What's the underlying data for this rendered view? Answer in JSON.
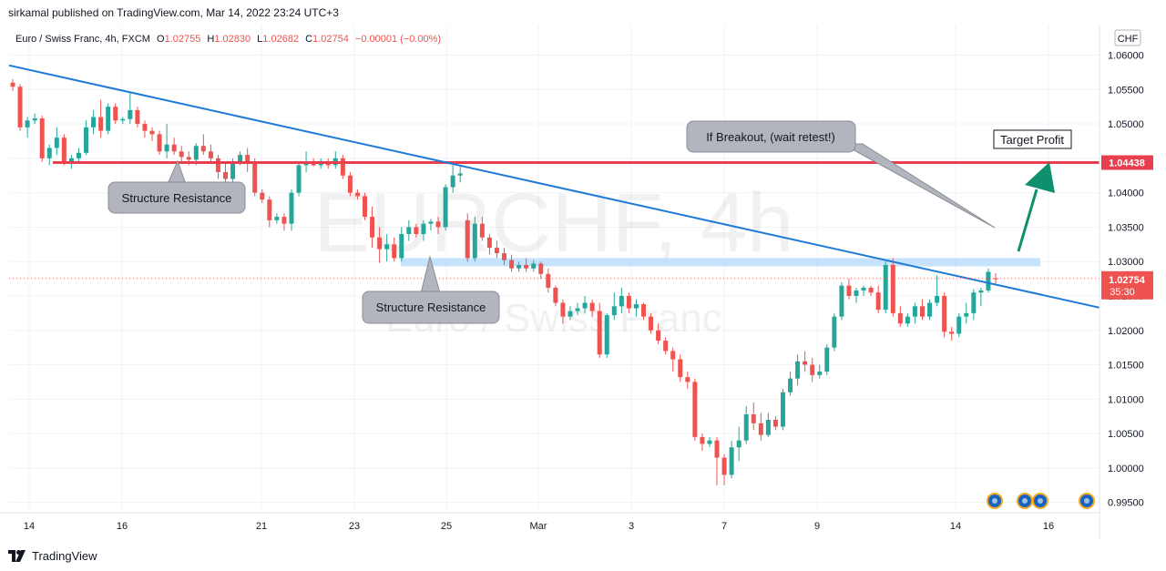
{
  "header": {
    "published": "sirkamal published on TradingView.com, Mar 14, 2022 23:24 UTC+3"
  },
  "legend": {
    "symbol": "Euro / Swiss Franc, 4h, FXCM",
    "o_label": "O",
    "o_value": "1.02755",
    "h_label": "H",
    "h_value": "1.02830",
    "l_label": "L",
    "l_value": "1.02682",
    "c_label": "C",
    "c_value": "1.02754",
    "change": "−0.00001 (−0.00%)"
  },
  "watermark": {
    "ticker": "EURCHF, 4h",
    "name": "Euro / Swiss Franc"
  },
  "currency_label": "CHF",
  "price_tags": {
    "resistance": "1.04438",
    "last_price": "1.02754",
    "countdown": "35:30"
  },
  "annotations": {
    "structure_resistance_1": "Structure Resistance",
    "structure_resistance_2": "Structure Resistance",
    "breakout_note": "If Breakout, (wait retest!)",
    "target_profit": "Target Profit"
  },
  "footer": {
    "brand": "TradingView"
  },
  "colors": {
    "up": "#26a69a",
    "down": "#ef5350",
    "trendline": "#1e7bd6",
    "resistance_line": "#e83f4f",
    "support_zone": "#bbdefb",
    "target_arrow": "#0e8f6e",
    "callout_fill": "#b2b5be"
  },
  "chart_data": {
    "type": "candlestick",
    "symbol": "EURCHF",
    "timeframe": "4h",
    "y_ticks": [
      "1.06000",
      "1.05500",
      "1.05000",
      "1.04500",
      "1.04000",
      "1.03500",
      "1.03000",
      "1.02500",
      "1.02000",
      "1.01500",
      "1.01000",
      "1.00500",
      "1.00000",
      "0.99500"
    ],
    "ylim": [
      0.9935,
      1.0643
    ],
    "x_ticks": [
      "14",
      "16",
      "21",
      "23",
      "25",
      "Mar",
      "3",
      "7",
      "9",
      "14",
      "16"
    ],
    "levels": {
      "resistance": 1.04438,
      "last_price": 1.02754
    },
    "support_zone": [
      1.0293,
      1.0305
    ],
    "trendline": {
      "start": 1.0585,
      "end": 1.0233
    },
    "candles": [
      {
        "o": 1.056,
        "h": 1.0565,
        "l": 1.0548,
        "c": 1.0554
      },
      {
        "o": 1.0554,
        "h": 1.0558,
        "l": 1.049,
        "c": 1.0495
      },
      {
        "o": 1.0495,
        "h": 1.051,
        "l": 1.048,
        "c": 1.0505
      },
      {
        "o": 1.0505,
        "h": 1.0515,
        "l": 1.05,
        "c": 1.0508
      },
      {
        "o": 1.0508,
        "h": 1.0512,
        "l": 1.0445,
        "c": 1.045
      },
      {
        "o": 1.045,
        "h": 1.047,
        "l": 1.044,
        "c": 1.0465
      },
      {
        "o": 1.0465,
        "h": 1.0495,
        "l": 1.0455,
        "c": 1.048
      },
      {
        "o": 1.048,
        "h": 1.0485,
        "l": 1.044,
        "c": 1.0445
      },
      {
        "o": 1.0445,
        "h": 1.0455,
        "l": 1.0435,
        "c": 1.045
      },
      {
        "o": 1.045,
        "h": 1.0465,
        "l": 1.0445,
        "c": 1.0458
      },
      {
        "o": 1.0458,
        "h": 1.0505,
        "l": 1.0455,
        "c": 1.0495
      },
      {
        "o": 1.0495,
        "h": 1.052,
        "l": 1.0485,
        "c": 1.051
      },
      {
        "o": 1.051,
        "h": 1.0535,
        "l": 1.048,
        "c": 1.049
      },
      {
        "o": 1.049,
        "h": 1.053,
        "l": 1.0485,
        "c": 1.0525
      },
      {
        "o": 1.0525,
        "h": 1.053,
        "l": 1.05,
        "c": 1.0505
      },
      {
        "o": 1.0505,
        "h": 1.051,
        "l": 1.05,
        "c": 1.0507
      },
      {
        "o": 1.0507,
        "h": 1.0545,
        "l": 1.05,
        "c": 1.052
      },
      {
        "o": 1.052,
        "h": 1.0525,
        "l": 1.0495,
        "c": 1.05
      },
      {
        "o": 1.05,
        "h": 1.0505,
        "l": 1.048,
        "c": 1.049
      },
      {
        "o": 1.049,
        "h": 1.0495,
        "l": 1.0475,
        "c": 1.0485
      },
      {
        "o": 1.0485,
        "h": 1.049,
        "l": 1.0455,
        "c": 1.046
      },
      {
        "o": 1.046,
        "h": 1.05,
        "l": 1.045,
        "c": 1.047
      },
      {
        "o": 1.047,
        "h": 1.048,
        "l": 1.0455,
        "c": 1.046
      },
      {
        "o": 1.046,
        "h": 1.0468,
        "l": 1.0445,
        "c": 1.0452
      },
      {
        "o": 1.0452,
        "h": 1.046,
        "l": 1.044,
        "c": 1.0448
      },
      {
        "o": 1.0448,
        "h": 1.0472,
        "l": 1.044,
        "c": 1.0468
      },
      {
        "o": 1.0468,
        "h": 1.0485,
        "l": 1.0455,
        "c": 1.046
      },
      {
        "o": 1.046,
        "h": 1.047,
        "l": 1.0445,
        "c": 1.045
      },
      {
        "o": 1.045,
        "h": 1.0455,
        "l": 1.042,
        "c": 1.043
      },
      {
        "o": 1.043,
        "h": 1.0445,
        "l": 1.0415,
        "c": 1.042
      },
      {
        "o": 1.042,
        "h": 1.045,
        "l": 1.0415,
        "c": 1.0445
      },
      {
        "o": 1.0445,
        "h": 1.046,
        "l": 1.044,
        "c": 1.0455
      },
      {
        "o": 1.0455,
        "h": 1.0465,
        "l": 1.043,
        "c": 1.0445
      },
      {
        "o": 1.0445,
        "h": 1.045,
        "l": 1.0395,
        "c": 1.04
      },
      {
        "o": 1.04,
        "h": 1.0405,
        "l": 1.0385,
        "c": 1.039
      },
      {
        "o": 1.039,
        "h": 1.0395,
        "l": 1.035,
        "c": 1.036
      },
      {
        "o": 1.036,
        "h": 1.037,
        "l": 1.0355,
        "c": 1.0365
      },
      {
        "o": 1.0365,
        "h": 1.037,
        "l": 1.0345,
        "c": 1.0355
      },
      {
        "o": 1.0355,
        "h": 1.0405,
        "l": 1.0345,
        "c": 1.04
      },
      {
        "o": 1.04,
        "h": 1.0445,
        "l": 1.0395,
        "c": 1.044
      },
      {
        "o": 1.044,
        "h": 1.046,
        "l": 1.043,
        "c": 1.0445
      },
      {
        "o": 1.0445,
        "h": 1.045,
        "l": 1.0438,
        "c": 1.044
      },
      {
        "o": 1.044,
        "h": 1.045,
        "l": 1.0435,
        "c": 1.0445
      },
      {
        "o": 1.0445,
        "h": 1.045,
        "l": 1.0435,
        "c": 1.044
      },
      {
        "o": 1.044,
        "h": 1.046,
        "l": 1.0435,
        "c": 1.045
      },
      {
        "o": 1.045,
        "h": 1.0455,
        "l": 1.042,
        "c": 1.0425
      },
      {
        "o": 1.0425,
        "h": 1.043,
        "l": 1.0395,
        "c": 1.04
      },
      {
        "o": 1.04,
        "h": 1.0405,
        "l": 1.039,
        "c": 1.0395
      },
      {
        "o": 1.0395,
        "h": 1.04,
        "l": 1.036,
        "c": 1.0365
      },
      {
        "o": 1.0365,
        "h": 1.038,
        "l": 1.032,
        "c": 1.0335
      },
      {
        "o": 1.0335,
        "h": 1.035,
        "l": 1.0298,
        "c": 1.0318
      },
      {
        "o": 1.0318,
        "h": 1.034,
        "l": 1.03,
        "c": 1.0325
      },
      {
        "o": 1.0325,
        "h": 1.0335,
        "l": 1.03,
        "c": 1.0305
      },
      {
        "o": 1.0305,
        "h": 1.035,
        "l": 1.03,
        "c": 1.034
      },
      {
        "o": 1.034,
        "h": 1.036,
        "l": 1.033,
        "c": 1.035
      },
      {
        "o": 1.035,
        "h": 1.0355,
        "l": 1.0335,
        "c": 1.034
      },
      {
        "o": 1.034,
        "h": 1.036,
        "l": 1.033,
        "c": 1.0355
      },
      {
        "o": 1.0355,
        "h": 1.0362,
        "l": 1.0345,
        "c": 1.0358
      },
      {
        "o": 1.0358,
        "h": 1.0365,
        "l": 1.034,
        "c": 1.035
      },
      {
        "o": 1.035,
        "h": 1.0412,
        "l": 1.0345,
        "c": 1.0408
      },
      {
        "o": 1.0408,
        "h": 1.044,
        "l": 1.04,
        "c": 1.0425
      },
      {
        "o": 1.0425,
        "h": 1.044,
        "l": 1.0415,
        "c": 1.0428
      },
      {
        "o": 1.036,
        "h": 1.037,
        "l": 1.03,
        "c": 1.0305
      },
      {
        "o": 1.0305,
        "h": 1.0365,
        "l": 1.03,
        "c": 1.0355
      },
      {
        "o": 1.0355,
        "h": 1.0365,
        "l": 1.033,
        "c": 1.0335
      },
      {
        "o": 1.0335,
        "h": 1.034,
        "l": 1.031,
        "c": 1.032
      },
      {
        "o": 1.032,
        "h": 1.033,
        "l": 1.0305,
        "c": 1.0312
      },
      {
        "o": 1.0312,
        "h": 1.032,
        "l": 1.0295,
        "c": 1.0302
      },
      {
        "o": 1.0302,
        "h": 1.031,
        "l": 1.0285,
        "c": 1.029
      },
      {
        "o": 1.029,
        "h": 1.03,
        "l": 1.0285,
        "c": 1.0295
      },
      {
        "o": 1.0295,
        "h": 1.0305,
        "l": 1.0285,
        "c": 1.029
      },
      {
        "o": 1.029,
        "h": 1.0302,
        "l": 1.0285,
        "c": 1.0297
      },
      {
        "o": 1.0297,
        "h": 1.03,
        "l": 1.0275,
        "c": 1.0282
      },
      {
        "o": 1.0282,
        "h": 1.029,
        "l": 1.0255,
        "c": 1.0262
      },
      {
        "o": 1.0262,
        "h": 1.0265,
        "l": 1.0235,
        "c": 1.024
      },
      {
        "o": 1.024,
        "h": 1.0245,
        "l": 1.021,
        "c": 1.022
      },
      {
        "o": 1.022,
        "h": 1.0235,
        "l": 1.0215,
        "c": 1.0228
      },
      {
        "o": 1.0228,
        "h": 1.024,
        "l": 1.0222,
        "c": 1.0232
      },
      {
        "o": 1.0232,
        "h": 1.025,
        "l": 1.0225,
        "c": 1.024
      },
      {
        "o": 1.024,
        "h": 1.0245,
        "l": 1.022,
        "c": 1.0228
      },
      {
        "o": 1.0228,
        "h": 1.024,
        "l": 1.016,
        "c": 1.0165
      },
      {
        "o": 1.0165,
        "h": 1.0225,
        "l": 1.016,
        "c": 1.0222
      },
      {
        "o": 1.0222,
        "h": 1.0255,
        "l": 1.0215,
        "c": 1.0235
      },
      {
        "o": 1.0235,
        "h": 1.0262,
        "l": 1.0225,
        "c": 1.025
      },
      {
        "o": 1.025,
        "h": 1.0255,
        "l": 1.0225,
        "c": 1.0232
      },
      {
        "o": 1.0232,
        "h": 1.0245,
        "l": 1.022,
        "c": 1.0238
      },
      {
        "o": 1.0238,
        "h": 1.024,
        "l": 1.0215,
        "c": 1.022
      },
      {
        "o": 1.022,
        "h": 1.0225,
        "l": 1.0195,
        "c": 1.02
      },
      {
        "o": 1.02,
        "h": 1.021,
        "l": 1.018,
        "c": 1.0185
      },
      {
        "o": 1.0185,
        "h": 1.019,
        "l": 1.0165,
        "c": 1.017
      },
      {
        "o": 1.017,
        "h": 1.0175,
        "l": 1.014,
        "c": 1.0158
      },
      {
        "o": 1.0158,
        "h": 1.0165,
        "l": 1.0125,
        "c": 1.0132
      },
      {
        "o": 1.0132,
        "h": 1.014,
        "l": 1.0115,
        "c": 1.0125
      },
      {
        "o": 1.0125,
        "h": 1.013,
        "l": 1.004,
        "c": 1.0045
      },
      {
        "o": 1.0045,
        "h": 1.005,
        "l": 1.0025,
        "c": 1.0035
      },
      {
        "o": 1.0035,
        "h": 1.0045,
        "l": 1.003,
        "c": 1.004
      },
      {
        "o": 1.004,
        "h": 1.0045,
        "l": 0.9975,
        "c": 1.0015
      },
      {
        "o": 1.0015,
        "h": 1.002,
        "l": 0.9975,
        "c": 0.999
      },
      {
        "o": 0.999,
        "h": 1.004,
        "l": 0.9985,
        "c": 1.003
      },
      {
        "o": 1.003,
        "h": 1.006,
        "l": 1.001,
        "c": 1.004
      },
      {
        "o": 1.004,
        "h": 1.009,
        "l": 1.0035,
        "c": 1.0078
      },
      {
        "o": 1.0078,
        "h": 1.0095,
        "l": 1.0055,
        "c": 1.0065
      },
      {
        "o": 1.0065,
        "h": 1.008,
        "l": 1.004,
        "c": 1.0048
      },
      {
        "o": 1.0048,
        "h": 1.008,
        "l": 1.0045,
        "c": 1.007
      },
      {
        "o": 1.007,
        "h": 1.0075,
        "l": 1.0055,
        "c": 1.006
      },
      {
        "o": 1.006,
        "h": 1.0115,
        "l": 1.0055,
        "c": 1.011
      },
      {
        "o": 1.011,
        "h": 1.014,
        "l": 1.0105,
        "c": 1.013
      },
      {
        "o": 1.013,
        "h": 1.0165,
        "l": 1.012,
        "c": 1.0155
      },
      {
        "o": 1.0155,
        "h": 1.017,
        "l": 1.014,
        "c": 1.015
      },
      {
        "o": 1.015,
        "h": 1.016,
        "l": 1.0125,
        "c": 1.0135
      },
      {
        "o": 1.0135,
        "h": 1.015,
        "l": 1.013,
        "c": 1.014
      },
      {
        "o": 1.014,
        "h": 1.018,
        "l": 1.0135,
        "c": 1.0175
      },
      {
        "o": 1.0175,
        "h": 1.0225,
        "l": 1.017,
        "c": 1.022
      },
      {
        "o": 1.022,
        "h": 1.027,
        "l": 1.0215,
        "c": 1.0265
      },
      {
        "o": 1.0265,
        "h": 1.0275,
        "l": 1.0245,
        "c": 1.025
      },
      {
        "o": 1.025,
        "h": 1.0262,
        "l": 1.024,
        "c": 1.0258
      },
      {
        "o": 1.0258,
        "h": 1.0265,
        "l": 1.025,
        "c": 1.0262
      },
      {
        "o": 1.0262,
        "h": 1.0265,
        "l": 1.025,
        "c": 1.0255
      },
      {
        "o": 1.0255,
        "h": 1.0265,
        "l": 1.0225,
        "c": 1.023
      },
      {
        "o": 1.023,
        "h": 1.03,
        "l": 1.0225,
        "c": 1.0295
      },
      {
        "o": 1.0295,
        "h": 1.0305,
        "l": 1.022,
        "c": 1.0225
      },
      {
        "o": 1.0225,
        "h": 1.0235,
        "l": 1.0205,
        "c": 1.021
      },
      {
        "o": 1.021,
        "h": 1.0225,
        "l": 1.0205,
        "c": 1.022
      },
      {
        "o": 1.022,
        "h": 1.024,
        "l": 1.021,
        "c": 1.0235
      },
      {
        "o": 1.0235,
        "h": 1.0245,
        "l": 1.0215,
        "c": 1.022
      },
      {
        "o": 1.022,
        "h": 1.0245,
        "l": 1.0215,
        "c": 1.024
      },
      {
        "o": 1.024,
        "h": 1.028,
        "l": 1.0235,
        "c": 1.025
      },
      {
        "o": 1.025,
        "h": 1.0255,
        "l": 1.019,
        "c": 1.0198
      },
      {
        "o": 1.0198,
        "h": 1.0205,
        "l": 1.0185,
        "c": 1.0195
      },
      {
        "o": 1.0195,
        "h": 1.0225,
        "l": 1.019,
        "c": 1.022
      },
      {
        "o": 1.022,
        "h": 1.024,
        "l": 1.021,
        "c": 1.0225
      },
      {
        "o": 1.0225,
        "h": 1.026,
        "l": 1.0215,
        "c": 1.0255
      },
      {
        "o": 1.0255,
        "h": 1.0262,
        "l": 1.0235,
        "c": 1.0258
      },
      {
        "o": 1.0258,
        "h": 1.029,
        "l": 1.0255,
        "c": 1.0285
      },
      {
        "o": 1.02755,
        "h": 1.0283,
        "l": 1.02682,
        "c": 1.02754
      }
    ]
  }
}
